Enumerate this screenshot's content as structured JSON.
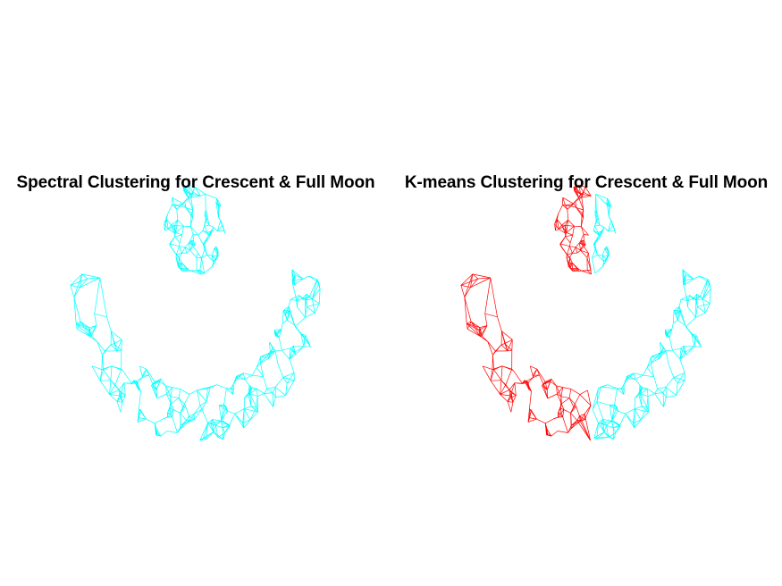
{
  "chart_data": [
    {
      "type": "scatter",
      "title": "Spectral Clustering for Crescent & Full Moon",
      "xlabel": "",
      "ylabel": "",
      "grid": false,
      "axes_visible": false,
      "xlim": [
        -4.5,
        4.5
      ],
      "ylim": [
        -3.0,
        2.0
      ],
      "render_style": "nearest-neighbor graph edges colored by cluster",
      "series": [
        {
          "cluster": 1,
          "color": "#00ffff",
          "shape": "crescent",
          "arc_center": [
            0,
            0.7
          ],
          "arc_radius": 3.3,
          "arc_angle_range_deg": [
            190,
            350
          ],
          "band_width": 0.55
        },
        {
          "cluster": 1,
          "color": "#00ffff",
          "shape": "full moon",
          "center": [
            0,
            1.0
          ],
          "radius": 0.9
        }
      ]
    },
    {
      "type": "scatter",
      "title": "K-means Clustering for Crescent & Full Moon",
      "xlabel": "",
      "ylabel": "",
      "grid": false,
      "axes_visible": false,
      "xlim": [
        -4.5,
        4.5
      ],
      "ylim": [
        -3.0,
        2.0
      ],
      "render_style": "nearest-neighbor graph edges colored by cluster",
      "split_x": 0.15,
      "series": [
        {
          "cluster": 1,
          "color": "#ff0000",
          "rule": "x < 0.15",
          "members": [
            "left part of crescent",
            "left part of full moon"
          ]
        },
        {
          "cluster": 2,
          "color": "#00ffff",
          "rule": "x >= 0.15",
          "members": [
            "right part of crescent",
            "right part of full moon"
          ]
        }
      ]
    }
  ]
}
